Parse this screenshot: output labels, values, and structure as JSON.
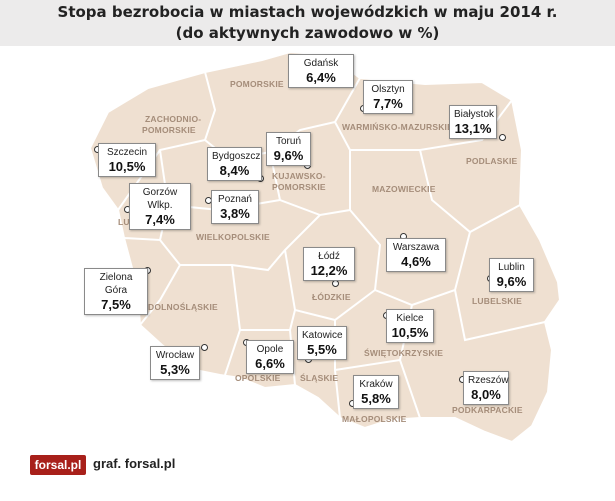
{
  "title": {
    "line1": "Stopa bezrobocia w miastach wojewódzkich w maju 2014 r.",
    "line2": "(do aktywnych zawodowo w %)"
  },
  "regions": [
    {
      "id": "pomorskie",
      "name": "POMORSKIE"
    },
    {
      "id": "zachodniopomorskie-1",
      "name": "ZACHODNIO-"
    },
    {
      "id": "zachodniopomorskie-2",
      "name": "POMORSKIE"
    },
    {
      "id": "warminsko-mazurskie",
      "name": "WARMIŃSKO-MAZURSKIE"
    },
    {
      "id": "podlaskie",
      "name": "PODLASKIE"
    },
    {
      "id": "kujawsko-pomorskie-1",
      "name": "KUJAWSKO-"
    },
    {
      "id": "kujawsko-pomorskie-2",
      "name": "POMORSKIE"
    },
    {
      "id": "mazowieckie",
      "name": "MAZOWIECKIE"
    },
    {
      "id": "lubuskie",
      "name": "LUBUSKIE"
    },
    {
      "id": "wielkopolskie",
      "name": "WIELKOPOLSKIE"
    },
    {
      "id": "lodzkie",
      "name": "ŁÓDZKIE"
    },
    {
      "id": "lubelskie",
      "name": "LUBELSKIE"
    },
    {
      "id": "dolnoslaskie",
      "name": "DOLNOŚLĄSKIE"
    },
    {
      "id": "swietokrzyskie",
      "name": "ŚWIĘTOKRZYSKIE"
    },
    {
      "id": "opolskie",
      "name": "OPOLSKIE"
    },
    {
      "id": "slaskie",
      "name": "ŚLĄSKIE"
    },
    {
      "id": "malopolskie",
      "name": "MAŁOPOLSKIE"
    },
    {
      "id": "podkarpackie",
      "name": "PODKARPACKIE"
    }
  ],
  "cities": [
    {
      "name": "Gdańsk",
      "value": "6,4%"
    },
    {
      "name": "Olsztyn",
      "value": "7,7%"
    },
    {
      "name": "Białystok",
      "value": "13,1%"
    },
    {
      "name": "Szczecin",
      "value": "10,5%"
    },
    {
      "name": "Bydgoszcz",
      "value": "8,4%"
    },
    {
      "name": "Toruń",
      "value": "9,6%"
    },
    {
      "name": "Gorzów Wlkp.",
      "value": "7,4%"
    },
    {
      "name": "Poznań",
      "value": "3,8%"
    },
    {
      "name": "Warszawa",
      "value": "4,6%"
    },
    {
      "name": "Łódź",
      "value": "12,2%"
    },
    {
      "name": "Lublin",
      "value": "9,6%"
    },
    {
      "name": "Zielona Góra",
      "value": "7,5%"
    },
    {
      "name": "Katowice",
      "value": "5,5%"
    },
    {
      "name": "Kielce",
      "value": "10,5%"
    },
    {
      "name": "Opole",
      "value": "6,6%"
    },
    {
      "name": "Wrocław",
      "value": "5,3%"
    },
    {
      "name": "Kraków",
      "value": "5,8%"
    },
    {
      "name": "Rzeszów",
      "value": "8,0%"
    }
  ],
  "logo": "forsal.pl",
  "credit": "graf. forsal.pl",
  "colors": {
    "land": "#efe0d1",
    "border": "#ffffff",
    "region_label": "#a58d7a",
    "logo_bg": "#a8201a"
  }
}
